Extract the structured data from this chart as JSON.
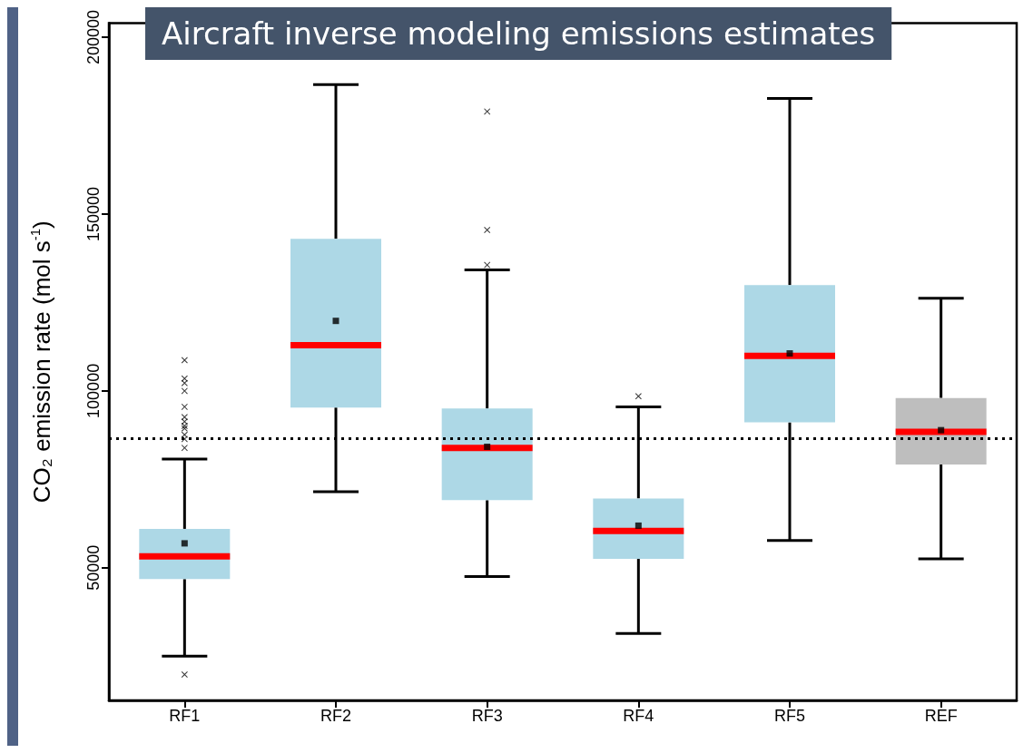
{
  "chart_data": {
    "type": "box",
    "title": "Aircraft inverse modeling emissions estimates",
    "ylabel": "CO₂ emission rate (mol s$^{-1}$)",
    "categories": [
      "RF1",
      "RF2",
      "RF3",
      "RF4",
      "RF5",
      "REF"
    ],
    "colors": [
      "#add8e6",
      "#add8e6",
      "#add8e6",
      "#add8e6",
      "#add8e6",
      "#bebebe"
    ],
    "boxes": [
      {
        "low": 25000,
        "q1": 46800,
        "median": 53200,
        "q3": 61000,
        "high": 80700,
        "mean": 56900,
        "outliers": [
          108700,
          103500,
          102200,
          100000,
          95500,
          92600,
          91300,
          90100,
          89400,
          87600,
          86400,
          83900,
          19800
        ]
      },
      {
        "low": 71500,
        "q1": 95300,
        "median": 112900,
        "q3": 143000,
        "high": 186600,
        "mean": 119800
      },
      {
        "low": 47500,
        "q1": 69100,
        "median": 83900,
        "q3": 95000,
        "high": 134200,
        "mean": 84200,
        "outliers": [
          179000,
          145500,
          135600
        ]
      },
      {
        "low": 31400,
        "q1": 52500,
        "median": 60400,
        "q3": 69600,
        "high": 95500,
        "mean": 61900,
        "outliers": [
          98500
        ]
      },
      {
        "low": 57700,
        "q1": 91100,
        "median": 109900,
        "q3": 129900,
        "high": 182700,
        "mean": 110600
      },
      {
        "low": 52500,
        "q1": 79200,
        "median": 88400,
        "q3": 98000,
        "high": 126200,
        "mean": 88900
      }
    ],
    "ylim": [
      12500,
      204000
    ],
    "yticks": [
      50000,
      100000,
      150000,
      200000
    ],
    "ref_lines": [
      {
        "axis": "y",
        "value": 86600,
        "color": "#000000",
        "line_style": "dotted"
      }
    ],
    "marker": "square",
    "grid": false
  }
}
